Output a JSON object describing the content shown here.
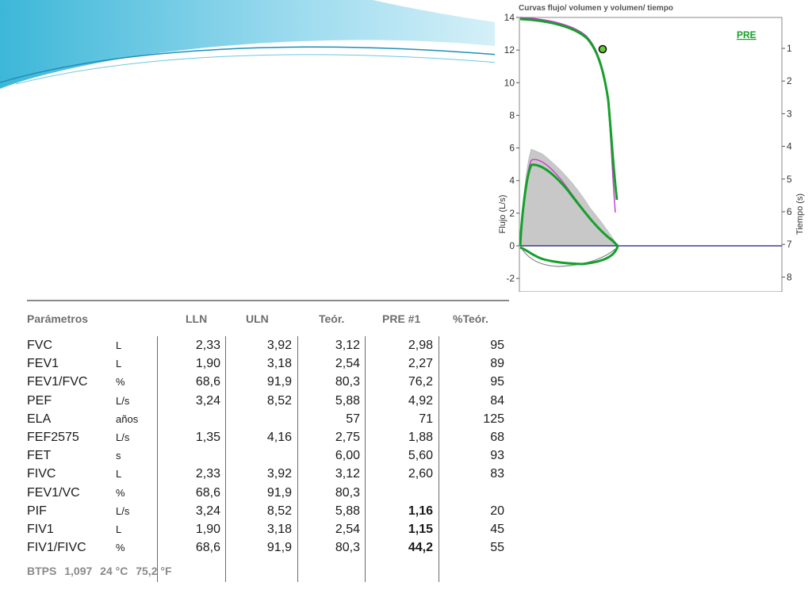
{
  "chart_data": {
    "type": "line",
    "title": "Curvas flujo/ volumen y volumen/ tiempo",
    "ylabel": "Flujo (L/s)",
    "y2label": "Tiempo (s)",
    "ylim": [
      -2.8,
      14
    ],
    "yticks": [
      "14",
      "12",
      "10",
      "8",
      "6",
      "4",
      "2",
      "0",
      "-2"
    ],
    "y2ticks": [
      "1",
      "2",
      "3",
      "4",
      "5",
      "6",
      "7",
      "8"
    ],
    "legend": "PRE",
    "grid": false,
    "colors": {
      "pre": "#14a02a",
      "predicted": "#cc33cc",
      "area": "#c8c8c8",
      "baseline": "#1a1a7a"
    }
  },
  "table": {
    "headers": [
      "Parámetros",
      "LLN",
      "ULN",
      "Teór.",
      "PRE #1",
      "%Teór."
    ],
    "rows": [
      {
        "param": "FVC",
        "unit": "L",
        "lln": "2,33",
        "uln": "3,92",
        "teor": "3,12",
        "pre": "2,98",
        "pct": "95",
        "bold": false
      },
      {
        "param": "FEV1",
        "unit": "L",
        "lln": "1,90",
        "uln": "3,18",
        "teor": "2,54",
        "pre": "2,27",
        "pct": "89",
        "bold": false
      },
      {
        "param": "FEV1/FVC",
        "unit": "%",
        "lln": "68,6",
        "uln": "91,9",
        "teor": "80,3",
        "pre": "76,2",
        "pct": "95",
        "bold": false
      },
      {
        "param": "PEF",
        "unit": "L/s",
        "lln": "3,24",
        "uln": "8,52",
        "teor": "5,88",
        "pre": "4,92",
        "pct": "84",
        "bold": false
      },
      {
        "param": "ELA",
        "unit": "años",
        "lln": "",
        "uln": "",
        "teor": "57",
        "pre": "71",
        "pct": "125",
        "bold": false
      },
      {
        "param": "FEF2575",
        "unit": "L/s",
        "lln": "1,35",
        "uln": "4,16",
        "teor": "2,75",
        "pre": "1,88",
        "pct": "68",
        "bold": false
      },
      {
        "param": "FET",
        "unit": "s",
        "lln": "",
        "uln": "",
        "teor": "6,00",
        "pre": "5,60",
        "pct": "93",
        "bold": false
      },
      {
        "param": "FIVC",
        "unit": "L",
        "lln": "2,33",
        "uln": "3,92",
        "teor": "3,12",
        "pre": "2,60",
        "pct": "83",
        "bold": false
      },
      {
        "param": "FEV1/VC",
        "unit": "%",
        "lln": "68,6",
        "uln": "91,9",
        "teor": "80,3",
        "pre": "",
        "pct": "",
        "bold": false
      },
      {
        "param": "PIF",
        "unit": "L/s",
        "lln": "3,24",
        "uln": "8,52",
        "teor": "5,88",
        "pre": "1,16",
        "pct": "20",
        "bold": true
      },
      {
        "param": "FIV1",
        "unit": "L",
        "lln": "1,90",
        "uln": "3,18",
        "teor": "2,54",
        "pre": "1,15",
        "pct": "45",
        "bold": true
      },
      {
        "param": "FIV1/FIVC",
        "unit": "%",
        "lln": "68,6",
        "uln": "91,9",
        "teor": "80,3",
        "pre": "44,2",
        "pct": "55",
        "bold": true
      }
    ],
    "footer": [
      "BTPS",
      "1,097",
      "24 °C",
      "75,2 °F"
    ]
  }
}
